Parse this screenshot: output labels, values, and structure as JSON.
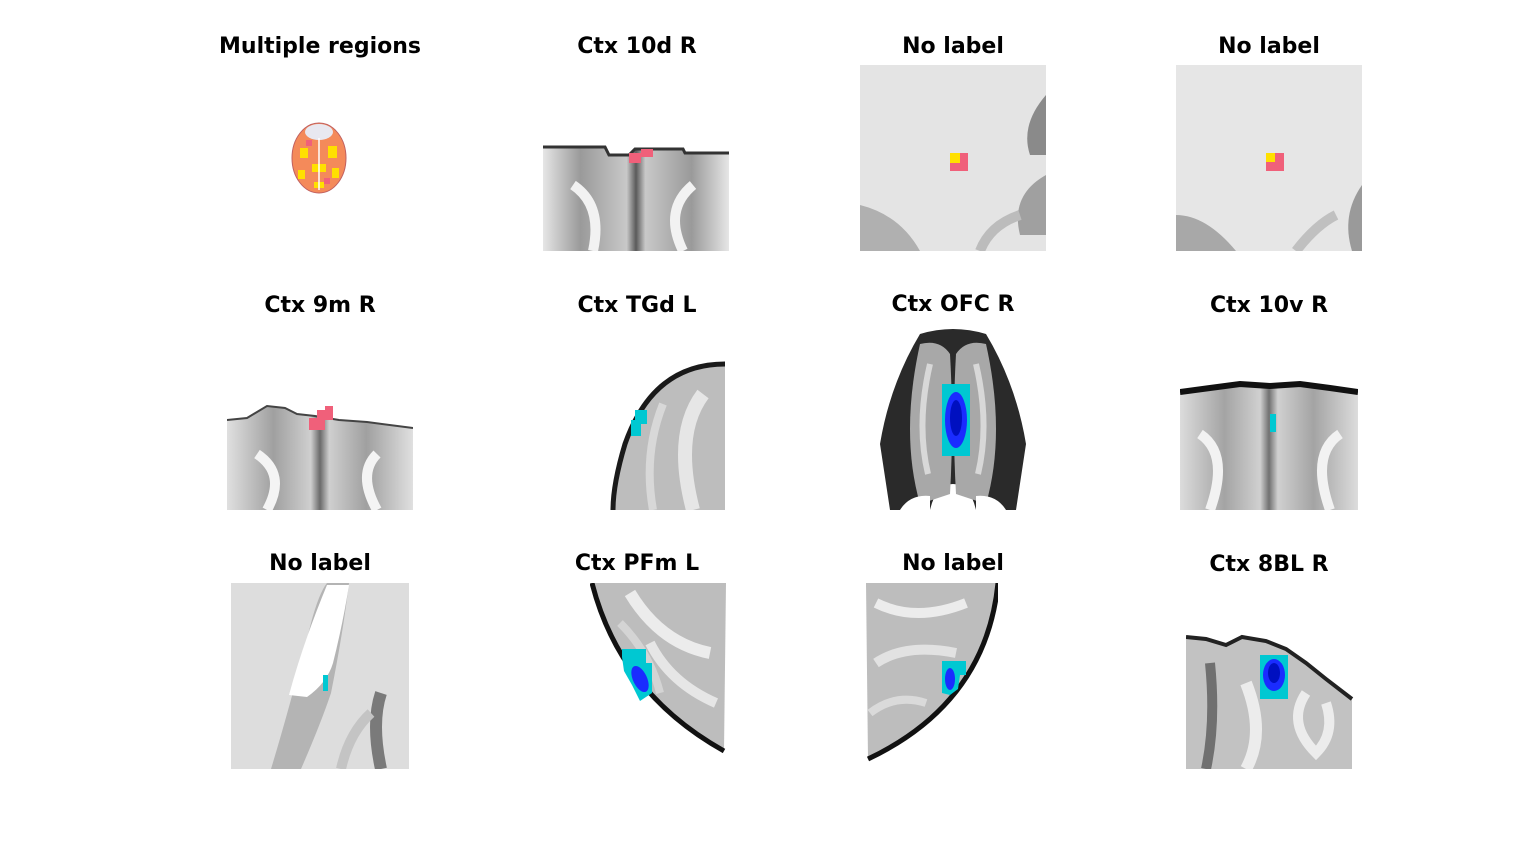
{
  "figure": {
    "panels": [
      {
        "title": "Multiple regions",
        "overlay": "multi-region"
      },
      {
        "title": "Ctx 10d R",
        "overlay": "red"
      },
      {
        "title": "No label",
        "overlay": "yellow-red"
      },
      {
        "title": "No label",
        "overlay": "yellow-red"
      },
      {
        "title": "Ctx 9m R",
        "overlay": "red"
      },
      {
        "title": "Ctx TGd L",
        "overlay": "cyan"
      },
      {
        "title": "Ctx OFC R",
        "overlay": "blue-cyan"
      },
      {
        "title": "Ctx 10v R",
        "overlay": "cyan"
      },
      {
        "title": "No label",
        "overlay": "cyan"
      },
      {
        "title": "Ctx PFm L",
        "overlay": "blue-cyan"
      },
      {
        "title": "No label",
        "overlay": "blue-cyan"
      },
      {
        "title": "Ctx 8BL R",
        "overlay": "blue-cyan"
      }
    ],
    "colors": {
      "red_blob": "#f0607a",
      "yellow_blob": "#ffe000",
      "cyan_blob": "#00c8d2",
      "blue_blob": "#1a2cff",
      "orange_fill": "#f48a5a"
    }
  }
}
